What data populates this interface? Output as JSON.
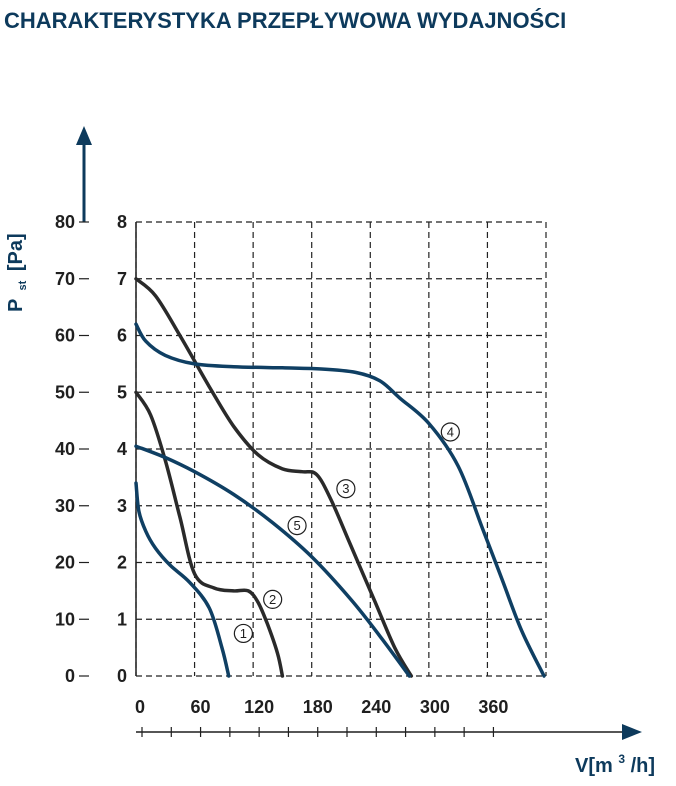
{
  "chart_data": {
    "type": "line",
    "title": "CHARAKTERYSTYKA PRZEPŁYWOWA WYDAJNOŚCI",
    "ylabel_main": "P",
    "ylabel_sub": "st",
    "ylabel_unit": "[Pa]",
    "xlabel_pre": "V[m",
    "xlabel_sup": "3",
    "xlabel_post": "/h]",
    "x_ticks": [
      "0",
      "60",
      "120",
      "180",
      "240",
      "300",
      "360"
    ],
    "x_tick_values": [
      0,
      60,
      120,
      180,
      240,
      300,
      360
    ],
    "y_ticks_outer": [
      "0",
      "10",
      "20",
      "30",
      "40",
      "50",
      "60",
      "70",
      "80"
    ],
    "y_ticks_inner": [
      "0",
      "1",
      "2",
      "3",
      "4",
      "5",
      "6",
      "7",
      "8"
    ],
    "xlim": [
      0,
      420
    ],
    "ylim": [
      0,
      80
    ],
    "grid": true,
    "colors": {
      "dark": "#2a2a2a",
      "blue": "#0f3f63",
      "title": "#0d3a5c",
      "grid": "#222222"
    },
    "series": [
      {
        "name": "1",
        "color": "#0f3f63",
        "label_pos": [
          110,
          7.5
        ],
        "x": [
          0,
          3,
          10,
          20,
          35,
          55,
          75,
          88,
          95
        ],
        "y": [
          34,
          29,
          25.5,
          22.5,
          19.5,
          16.5,
          12,
          5,
          0
        ]
      },
      {
        "name": "2",
        "color": "#2a2a2a",
        "label_pos": [
          140,
          13.5
        ],
        "x": [
          0,
          15,
          30,
          45,
          60,
          80,
          100,
          115,
          125,
          135,
          145,
          150
        ],
        "y": [
          50,
          46,
          38,
          28,
          18,
          15.5,
          15,
          15,
          13,
          9,
          4,
          0
        ]
      },
      {
        "name": "3",
        "color": "#2a2a2a",
        "label_pos": [
          215,
          33
        ],
        "x": [
          0,
          20,
          45,
          75,
          100,
          125,
          150,
          170,
          185,
          200,
          220,
          245,
          265,
          282
        ],
        "y": [
          70,
          67,
          60,
          51,
          44,
          39,
          36.5,
          36,
          35.5,
          31,
          23,
          13,
          5,
          0
        ]
      },
      {
        "name": "4",
        "color": "#0f3f63",
        "label_pos": [
          322,
          43
        ],
        "x": [
          0,
          10,
          30,
          60,
          100,
          150,
          190,
          225,
          250,
          270,
          300,
          330,
          355,
          375,
          395,
          418
        ],
        "y": [
          62,
          59,
          56.5,
          55,
          54.5,
          54.3,
          54.1,
          53.5,
          52,
          49,
          44.5,
          37,
          26,
          17,
          8,
          0
        ]
      },
      {
        "name": "5",
        "color": "#0f3f63",
        "label_pos": [
          165,
          26.5
        ],
        "x": [
          0,
          30,
          60,
          100,
          140,
          180,
          220,
          250,
          280
        ],
        "y": [
          40.5,
          38.5,
          36,
          32,
          27,
          21,
          13.5,
          7,
          0
        ]
      }
    ]
  }
}
